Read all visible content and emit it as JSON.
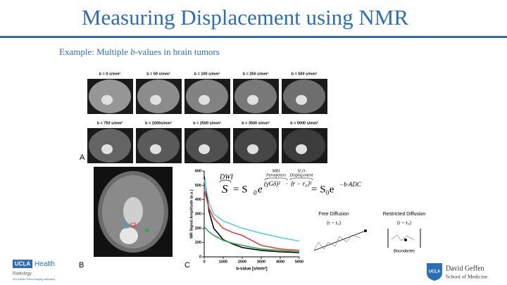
{
  "header": {
    "title": "Measuring Displacement using NMR"
  },
  "subtitle": {
    "prefix": "Example: Multiple ",
    "italic": "b",
    "suffix": "-values in brain tumors"
  },
  "panel_a": {
    "label": "A",
    "images": [
      "b = 0 s/mm²",
      "b = 50 s/mm²",
      "b = 100 s/mm²",
      "b = 250 s/mm²",
      "b = 500 s/mm²",
      "b = 750 s/mm²",
      "b = 1000s/mm²",
      "b = 2500 s/mm²",
      "b = 3500 s/mm²",
      "b = 5000 s/mm²"
    ]
  },
  "panel_b": {
    "label": "B"
  },
  "panel_c": {
    "label": "C",
    "chart_data": {
      "type": "line",
      "x_label": "b-value [s/mm²]",
      "y_label": "MR Signal Amplitude (a.u.)",
      "x": [
        0,
        250,
        500,
        1000,
        1500,
        2000,
        3000,
        4000,
        5000
      ],
      "series": [
        {
          "color": "#000000",
          "values": [
            560,
            320,
            200,
            120,
            90,
            65,
            45,
            35,
            30
          ]
        },
        {
          "color": "#5ccfe0",
          "values": [
            540,
            380,
            300,
            250,
            225,
            200,
            165,
            135,
            110
          ]
        },
        {
          "color": "#e8443f",
          "values": [
            470,
            340,
            270,
            200,
            170,
            150,
            80,
            55,
            45
          ]
        },
        {
          "color": "#2fa84f",
          "values": [
            210,
            175,
            150,
            115,
            95,
            80,
            55,
            45,
            35
          ]
        }
      ],
      "xlim": [
        0,
        5000
      ],
      "ylim": [
        0,
        600
      ],
      "xticks": [
        0,
        1000,
        2000,
        3000,
        4000,
        5000
      ],
      "yticks": [
        0,
        100,
        200,
        300,
        400,
        500,
        600
      ]
    }
  },
  "equation": {
    "dwi": "DWI",
    "s": "S",
    "eq1": "= S",
    "sub0": "0",
    "e": "e",
    "mri": "MRI",
    "parameters": "Parameters",
    "h2o": "H₂O",
    "displacement": "Displacement",
    "gamma": "(γGδ)²",
    "dot": "·",
    "disp": "⟨r − r₀⟩²",
    "eq2": "= S₀e",
    "adc": "−b·ADC"
  },
  "diagrams": {
    "free_title": "Free Diffusion",
    "free_symbol": "⟨r − r₀⟩",
    "restricted_title": "Restricted Diffusion",
    "restricted_symbol": "⟨r − r₀⟩",
    "boundaries": "Boundaries"
  },
  "logos": {
    "ucla": "UCLA",
    "health": "Health",
    "radiology": "Radiology",
    "lab": "UCLA Brain Tumor Imaging Laboratory",
    "shield": "UCLA",
    "geffen": "David Geffen",
    "school": "School of Medicine"
  }
}
